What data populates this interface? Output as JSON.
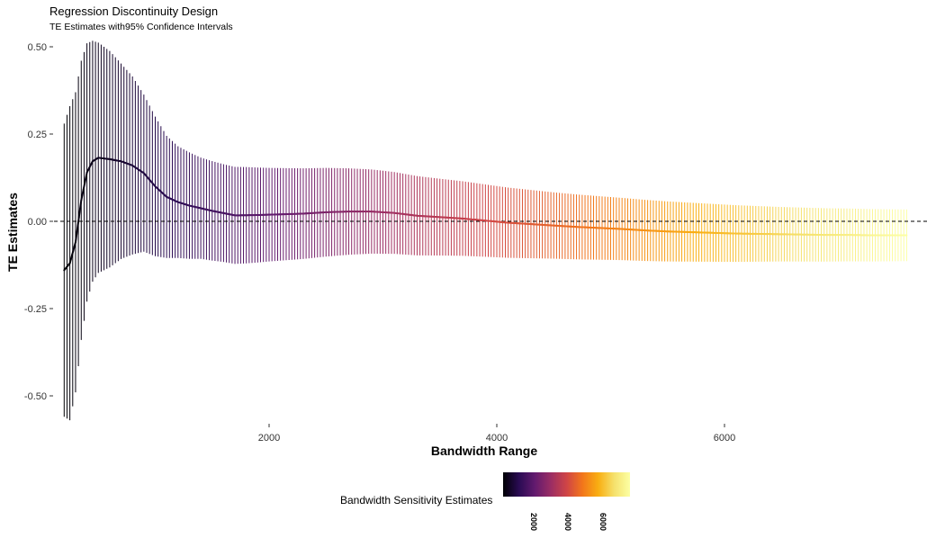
{
  "chart_data": {
    "type": "line",
    "title": "Regression Discontinuity Design",
    "subtitle": "TE Estimates with95% Confidence Intervals",
    "xlabel": "Bandwidth Range",
    "ylabel": "TE Estimates",
    "xlim": [
      30,
      7750
    ],
    "ylim": [
      -0.6,
      0.53
    ],
    "x_ticks": [
      2000,
      4000,
      6000
    ],
    "x_tick_labels": [
      "2000",
      "4000",
      "6000"
    ],
    "y_ticks": [
      0.5,
      0.25,
      0.0,
      -0.25,
      -0.5
    ],
    "y_tick_labels": [
      "0.50",
      "0.25",
      "0.00",
      "-0.25",
      "-0.50"
    ],
    "reference_line": {
      "y": 0,
      "style": "dashed"
    },
    "grid": false,
    "bandwidth_range": [
      200,
      7600
    ],
    "estimate_curve": {
      "x": [
        200,
        250,
        300,
        350,
        400,
        450,
        500,
        600,
        700,
        800,
        900,
        1000,
        1100,
        1200,
        1300,
        1500,
        1700,
        1900,
        2100,
        2300,
        2500,
        2700,
        2900,
        3100,
        3300,
        3500,
        3700,
        3900,
        4100,
        4300,
        4500,
        4700,
        4900,
        5100,
        5300,
        5500,
        5700,
        5900,
        6100,
        6300,
        6500,
        6700,
        6900,
        7100,
        7300,
        7500,
        7600
      ],
      "y": [
        -0.14,
        -0.12,
        -0.06,
        0.06,
        0.14,
        0.172,
        0.182,
        0.178,
        0.172,
        0.16,
        0.138,
        0.1,
        0.07,
        0.055,
        0.045,
        0.03,
        0.017,
        0.018,
        0.02,
        0.022,
        0.026,
        0.028,
        0.028,
        0.024,
        0.016,
        0.012,
        0.008,
        0.002,
        -0.004,
        -0.008,
        -0.012,
        -0.016,
        -0.019,
        -0.022,
        -0.026,
        -0.029,
        -0.031,
        -0.033,
        -0.035,
        -0.036,
        -0.037,
        -0.038,
        -0.039,
        -0.039,
        -0.04,
        -0.04,
        -0.04
      ]
    },
    "ci_half_width": {
      "x": [
        200,
        250,
        300,
        350,
        400,
        450,
        500,
        550,
        600,
        700,
        800,
        900,
        1000,
        1100,
        1200,
        1400,
        1600,
        1800,
        2000,
        2500,
        3000,
        3500,
        4000,
        4500,
        5000,
        5500,
        6000,
        6500,
        7000,
        7600
      ],
      "y": [
        0.42,
        0.45,
        0.43,
        0.4,
        0.37,
        0.345,
        0.33,
        0.32,
        0.31,
        0.28,
        0.255,
        0.225,
        0.2,
        0.175,
        0.16,
        0.145,
        0.14,
        0.138,
        0.134,
        0.127,
        0.119,
        0.11,
        0.102,
        0.095,
        0.09,
        0.086,
        0.082,
        0.078,
        0.076,
        0.074
      ]
    },
    "legend": {
      "title": "Bandwidth Sensitivity Estimates",
      "type": "colorbar",
      "placement": "bottom",
      "range": [
        200,
        7600
      ],
      "ticks": [
        2000,
        4000,
        6000
      ],
      "tick_labels": [
        "2000",
        "4000",
        "6000"
      ],
      "colors": [
        "#000004",
        "#2a0b53",
        "#621a6e",
        "#9a2d64",
        "#cf4446",
        "#f2761b",
        "#f9ae12",
        "#f5e16c",
        "#fcffa4"
      ]
    },
    "colors": {
      "reference_line": "#000000",
      "axis_text": "#333333"
    }
  }
}
